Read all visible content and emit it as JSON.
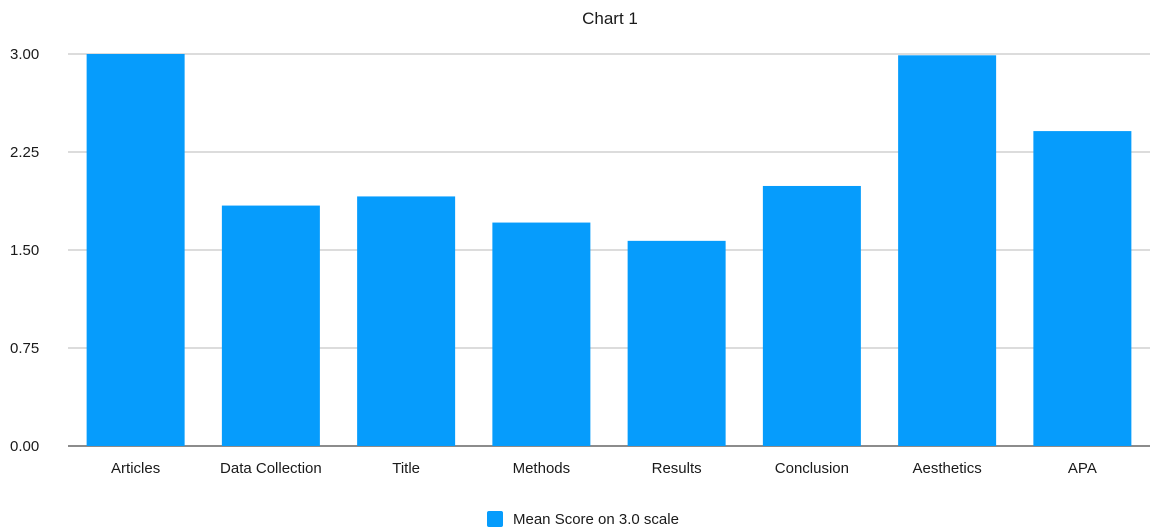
{
  "chart_data": {
    "type": "bar",
    "title": "Chart 1",
    "xlabel": "",
    "ylabel": "",
    "categories": [
      "Articles",
      "Data Collection",
      "Title",
      "Methods",
      "Results",
      "Conclusion",
      "Aesthetics",
      "APA"
    ],
    "series": [
      {
        "name": "Mean Score on 3.0 scale",
        "values": [
          3.0,
          1.84,
          1.91,
          1.71,
          1.57,
          1.99,
          2.99,
          2.41
        ],
        "color": "#069CFC"
      }
    ],
    "ylim": [
      0,
      3
    ],
    "yticks": [
      "0.00",
      "0.75",
      "1.50",
      "2.25",
      "3.00"
    ],
    "grid": true,
    "legend_position": "bottom-center"
  }
}
